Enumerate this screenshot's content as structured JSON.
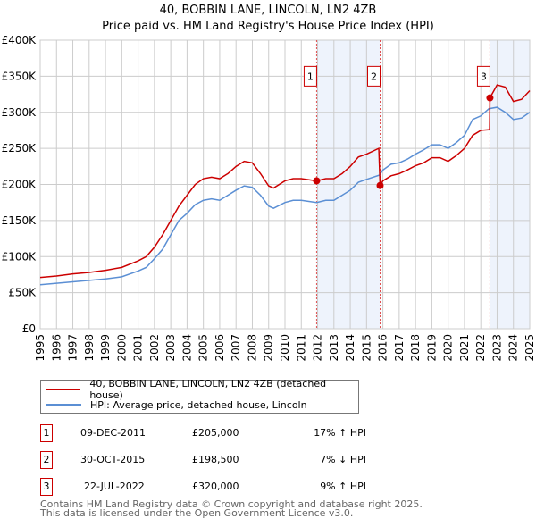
{
  "title": "40, BOBBIN LANE, LINCOLN, LN2 4ZB",
  "subtitle": "Price paid vs. HM Land Registry's House Price Index (HPI)",
  "chart_data": {
    "type": "line",
    "title": "40, BOBBIN LANE, LINCOLN, LN2 4ZB",
    "subtitle": "Price paid vs. HM Land Registry's House Price Index (HPI)",
    "xlim": [
      1995,
      2025
    ],
    "ylim": [
      0,
      400
    ],
    "x_ticks": [
      "1995",
      "1996",
      "1997",
      "1998",
      "1999",
      "2000",
      "2001",
      "2002",
      "2003",
      "2004",
      "2005",
      "2006",
      "2007",
      "2008",
      "2009",
      "2010",
      "2011",
      "2012",
      "2013",
      "2014",
      "2015",
      "2016",
      "2017",
      "2018",
      "2019",
      "2020",
      "2021",
      "2022",
      "2023",
      "2024",
      "2025"
    ],
    "y_ticks": [
      {
        "v": 0,
        "label": "£0"
      },
      {
        "v": 50,
        "label": "£50K"
      },
      {
        "v": 100,
        "label": "£100K"
      },
      {
        "v": 150,
        "label": "£150K"
      },
      {
        "v": 200,
        "label": "£200K"
      },
      {
        "v": 250,
        "label": "£250K"
      },
      {
        "v": 300,
        "label": "£300K"
      },
      {
        "v": 350,
        "label": "£350K"
      },
      {
        "v": 400,
        "label": "£400K"
      }
    ],
    "grid": true,
    "series": [
      {
        "name": "40, BOBBIN LANE, LINCOLN, LN2 4ZB (detached house)",
        "color": "#cc0000",
        "x": [
          1995,
          1996,
          1997,
          1998,
          1999,
          2000,
          2001,
          2001.5,
          2002,
          2002.5,
          2003,
          2003.5,
          2004,
          2004.5,
          2005,
          2005.5,
          2006,
          2006.5,
          2007,
          2007.5,
          2008,
          2008.5,
          2009,
          2009.3,
          2010,
          2010.5,
          2011,
          2011.94,
          2012.5,
          2013,
          2013.5,
          2014,
          2014.5,
          2015,
          2015.75,
          2015.83,
          2016,
          2016.5,
          2017,
          2017.5,
          2018,
          2018.5,
          2019,
          2019.5,
          2020,
          2020.5,
          2021,
          2021.5,
          2022,
          2022.54,
          2022.56,
          2023,
          2023.5,
          2024,
          2024.5,
          2025
        ],
        "y": [
          71,
          73,
          76,
          78,
          81,
          85,
          94,
          100,
          113,
          130,
          150,
          170,
          185,
          200,
          208,
          210,
          208,
          215,
          225,
          232,
          230,
          215,
          198,
          195,
          205,
          208,
          208,
          205,
          208,
          208,
          215,
          225,
          238,
          242,
          250,
          198.5,
          205,
          212,
          215,
          220,
          226,
          230,
          237,
          237,
          232,
          240,
          250,
          268,
          275,
          276,
          320,
          338,
          335,
          315,
          318,
          330
        ]
      },
      {
        "name": "HPI: Average price, detached house, Lincoln",
        "color": "#5b8fd4",
        "x": [
          1995,
          1996,
          1997,
          1998,
          1999,
          2000,
          2001,
          2001.5,
          2002,
          2002.5,
          2003,
          2003.5,
          2004,
          2004.5,
          2005,
          2005.5,
          2006,
          2006.5,
          2007,
          2007.5,
          2008,
          2008.5,
          2009,
          2009.3,
          2010,
          2010.5,
          2011,
          2011.94,
          2012.5,
          2013,
          2013.5,
          2014,
          2014.5,
          2015,
          2015.8,
          2016,
          2016.5,
          2017,
          2017.5,
          2018,
          2018.5,
          2019,
          2019.5,
          2020,
          2020.5,
          2021,
          2021.5,
          2022,
          2022.5,
          2023,
          2023.5,
          2024,
          2024.5,
          2025
        ],
        "y": [
          61,
          63,
          65,
          67,
          69,
          72,
          80,
          85,
          97,
          110,
          130,
          150,
          160,
          172,
          178,
          180,
          178,
          185,
          192,
          198,
          196,
          185,
          170,
          167,
          175,
          178,
          178,
          175,
          178,
          178,
          185,
          192,
          203,
          207,
          213,
          220,
          228,
          230,
          235,
          242,
          248,
          255,
          255,
          250,
          258,
          268,
          290,
          295,
          305,
          307,
          300,
          290,
          292,
          300
        ]
      }
    ],
    "sales": [
      {
        "label": "1",
        "x": 2011.94,
        "y": 205,
        "date": "09-DEC-2011",
        "price": "£205,000",
        "hpi": "17% ↑ HPI"
      },
      {
        "label": "2",
        "x": 2015.83,
        "y": 198.5,
        "date": "30-OCT-2015",
        "price": "£198,500",
        "hpi": "7% ↓ HPI"
      },
      {
        "label": "3",
        "x": 2022.56,
        "y": 320,
        "date": "22-JUL-2022",
        "price": "£320,000",
        "hpi": "9% ↑ HPI"
      }
    ],
    "legend_position": "below"
  },
  "footer": [
    "Contains HM Land Registry data © Crown copyright and database right 2025.",
    "This data is licensed under the Open Government Licence v3.0."
  ]
}
